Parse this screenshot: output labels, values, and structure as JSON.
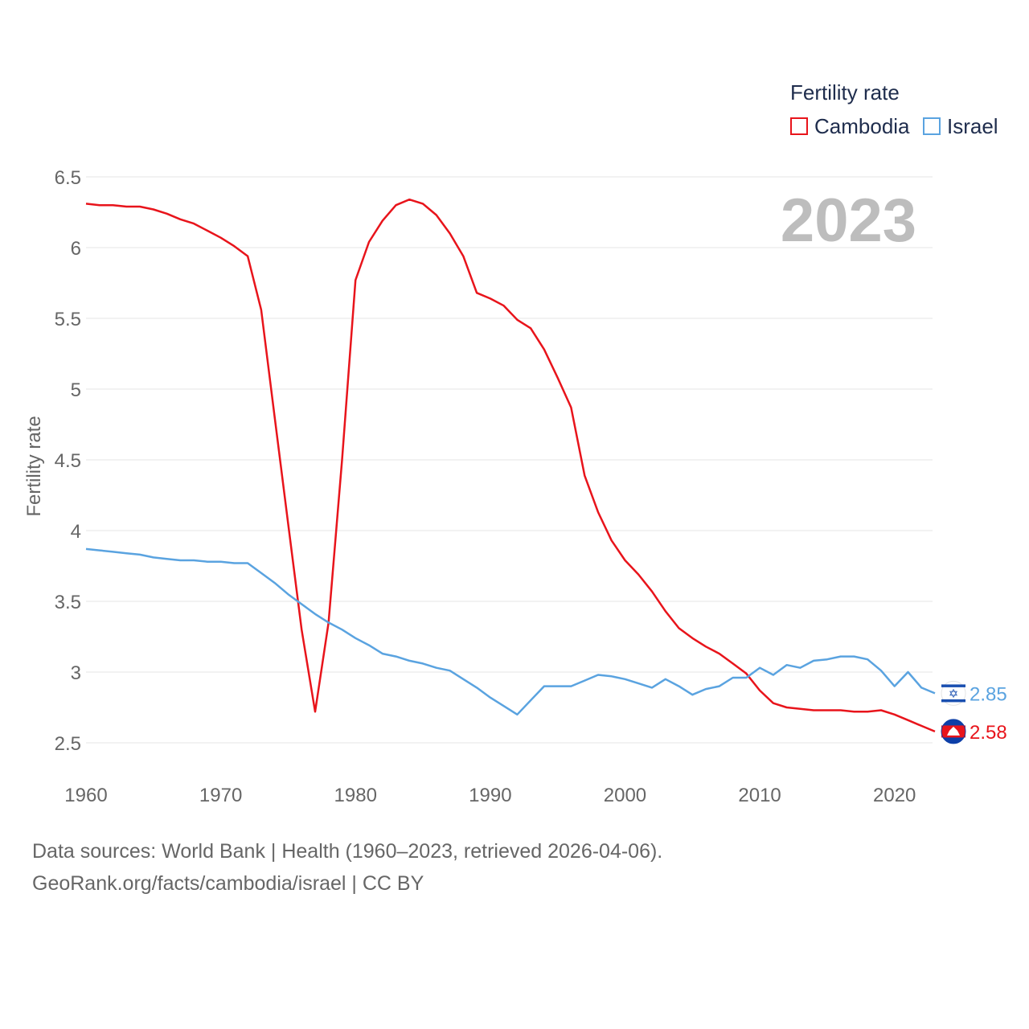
{
  "chart_data": {
    "type": "line",
    "ylabel": "Fertility rate",
    "xlabel": "",
    "year_label": "2023",
    "ylim": [
      2.5,
      6.5
    ],
    "xlim": [
      1960,
      2023
    ],
    "yticks": [
      "2.5",
      "3",
      "3.5",
      "4",
      "4.5",
      "5",
      "5.5",
      "6",
      "6.5"
    ],
    "xticks": [
      "1960",
      "1970",
      "1980",
      "1990",
      "2000",
      "2010",
      "2020"
    ],
    "legend": {
      "title": "Fertility rate",
      "position": "top-right"
    },
    "x": [
      1960,
      1961,
      1962,
      1963,
      1964,
      1965,
      1966,
      1967,
      1968,
      1969,
      1970,
      1971,
      1972,
      1973,
      1974,
      1975,
      1976,
      1977,
      1978,
      1979,
      1980,
      1981,
      1982,
      1983,
      1984,
      1985,
      1986,
      1987,
      1988,
      1989,
      1990,
      1991,
      1992,
      1993,
      1994,
      1995,
      1996,
      1997,
      1998,
      1999,
      2000,
      2001,
      2002,
      2003,
      2004,
      2005,
      2006,
      2007,
      2008,
      2009,
      2010,
      2011,
      2012,
      2013,
      2014,
      2015,
      2016,
      2017,
      2018,
      2019,
      2020,
      2021,
      2022,
      2023
    ],
    "series": [
      {
        "name": "Cambodia",
        "color": "#e8141b",
        "end_label": "2.58",
        "values": [
          6.31,
          6.3,
          6.3,
          6.29,
          6.29,
          6.27,
          6.24,
          6.2,
          6.17,
          6.12,
          6.07,
          6.01,
          5.94,
          5.56,
          4.8,
          4.05,
          3.3,
          2.72,
          3.35,
          4.5,
          5.77,
          6.04,
          6.19,
          6.3,
          6.34,
          6.31,
          6.23,
          6.1,
          5.94,
          5.68,
          5.64,
          5.59,
          5.49,
          5.43,
          5.28,
          5.08,
          4.87,
          4.39,
          4.13,
          3.93,
          3.79,
          3.69,
          3.57,
          3.43,
          3.31,
          3.24,
          3.18,
          3.13,
          3.06,
          2.99,
          2.87,
          2.78,
          2.75,
          2.74,
          2.73,
          2.73,
          2.73,
          2.72,
          2.72,
          2.73,
          2.7,
          2.66,
          2.62,
          2.58
        ]
      },
      {
        "name": "Israel",
        "color": "#5aa3e0",
        "end_label": "2.85",
        "values": [
          3.87,
          3.86,
          3.85,
          3.84,
          3.83,
          3.81,
          3.8,
          3.79,
          3.79,
          3.78,
          3.78,
          3.77,
          3.77,
          3.7,
          3.63,
          3.55,
          3.48,
          3.41,
          3.35,
          3.3,
          3.24,
          3.19,
          3.13,
          3.11,
          3.08,
          3.06,
          3.03,
          3.01,
          2.95,
          2.89,
          2.82,
          2.76,
          2.7,
          2.8,
          2.9,
          2.9,
          2.9,
          2.94,
          2.98,
          2.97,
          2.95,
          2.92,
          2.89,
          2.95,
          2.9,
          2.84,
          2.88,
          2.9,
          2.96,
          2.96,
          3.03,
          2.98,
          3.05,
          3.03,
          3.08,
          3.09,
          3.11,
          3.11,
          3.09,
          3.01,
          2.9,
          3.0,
          2.89,
          2.85
        ]
      }
    ]
  },
  "footer": {
    "sources": "Data sources: World Bank | Health (1960–2023, retrieved 2026-04-06).",
    "link": "GeoRank.org/facts/cambodia/israel | CC BY"
  }
}
